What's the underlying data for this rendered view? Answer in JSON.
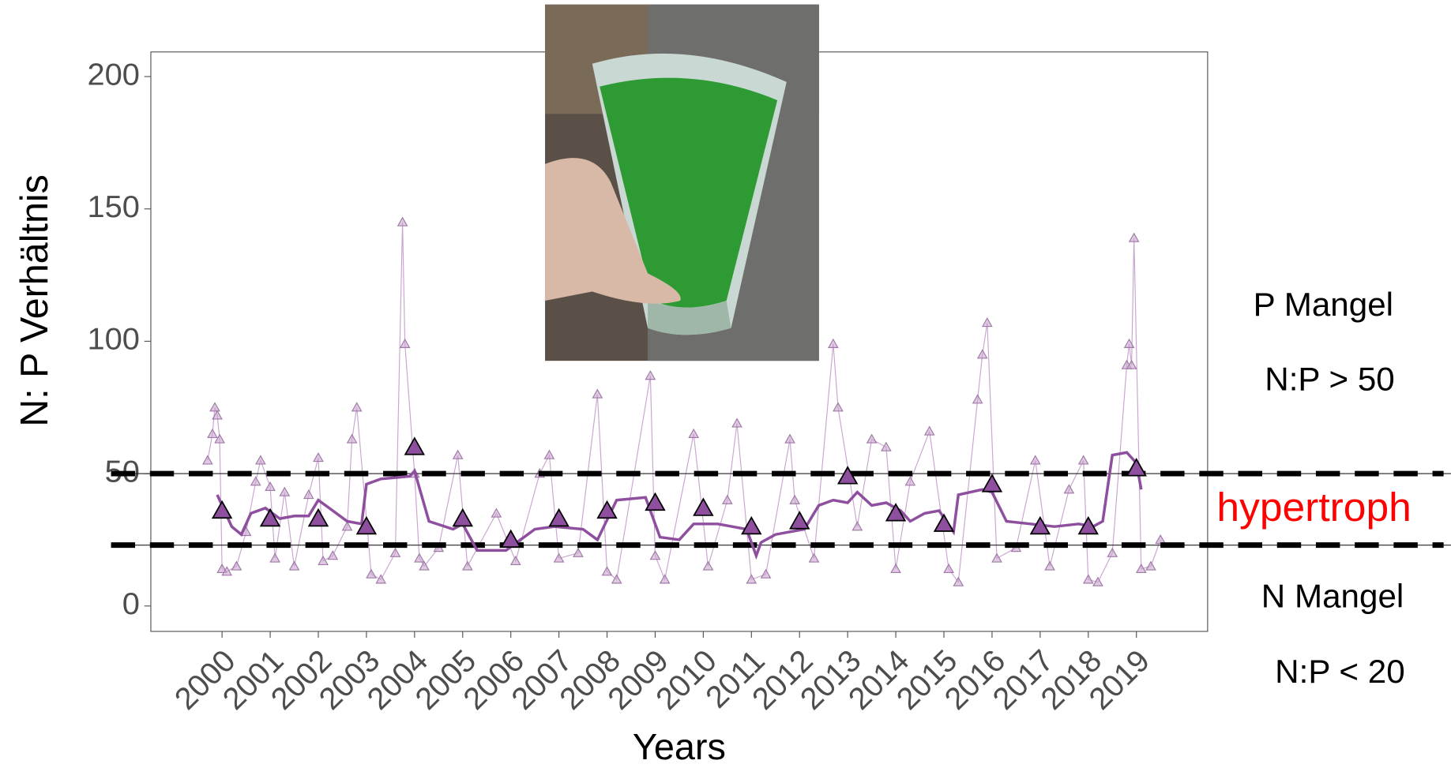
{
  "chart_data": {
    "type": "line",
    "y_label": "N: P Verhältnis",
    "x_label": "Years",
    "xlim": [
      1998.52,
      2020.48
    ],
    "ylim": [
      -9.6,
      209.3
    ],
    "xticks": [
      2000,
      2001,
      2002,
      2003,
      2004,
      2005,
      2006,
      2007,
      2008,
      2009,
      2010,
      2011,
      2012,
      2013,
      2014,
      2015,
      2016,
      2017,
      2018,
      2019
    ],
    "yticks": [
      0,
      50,
      100,
      150,
      200
    ],
    "thresholds": [
      50,
      23
    ],
    "annotations": [
      "P Mangel",
      "N:P > 50",
      "hypertroph",
      "N Mangel",
      "N:P < 20"
    ],
    "monthly": {
      "color": "#c9a6cf",
      "x": [
        1999.7,
        1999.8,
        1999.85,
        1999.9,
        1999.95,
        2000.0,
        2000.1,
        2000.3,
        2000.5,
        2000.7,
        2000.8,
        2001.0,
        2001.1,
        2001.3,
        2001.5,
        2001.8,
        2002.0,
        2002.1,
        2002.3,
        2002.6,
        2002.7,
        2002.8,
        2003.1,
        2003.3,
        2003.6,
        2003.75,
        2003.8,
        2004.0,
        2004.1,
        2004.2,
        2004.5,
        2004.9,
        2005.1,
        2005.7,
        2006.1,
        2006.6,
        2006.8,
        2007.0,
        2007.4,
        2007.8,
        2008.0,
        2008.2,
        2008.9,
        2009.0,
        2009.2,
        2009.8,
        2010.1,
        2010.5,
        2010.7,
        2011.0,
        2011.3,
        2011.8,
        2011.9,
        2012.3,
        2012.7,
        2012.8,
        2013.2,
        2013.5,
        2013.8,
        2014.0,
        2014.3,
        2014.7,
        2015.1,
        2015.3,
        2015.7,
        2015.8,
        2015.9,
        2016.1,
        2016.5,
        2016.9,
        2017.2,
        2017.6,
        2017.9,
        2018.0,
        2018.2,
        2018.5,
        2018.8,
        2018.85,
        2018.9,
        2018.95,
        2019.1,
        2019.3,
        2019.5
      ],
      "values": [
        55,
        65,
        75,
        72,
        63,
        14,
        13,
        15,
        28,
        47,
        55,
        45,
        18,
        43,
        15,
        42,
        56,
        17,
        19,
        30,
        63,
        75,
        12,
        10,
        20,
        145,
        99,
        50,
        18,
        15,
        22,
        57,
        15,
        35,
        17,
        50,
        57,
        18,
        20,
        80,
        13,
        10,
        87,
        19,
        10,
        65,
        15,
        40,
        69,
        10,
        12,
        63,
        40,
        18,
        99,
        75,
        30,
        63,
        60,
        14,
        47,
        66,
        14,
        9,
        78,
        95,
        107,
        18,
        22,
        55,
        15,
        44,
        55,
        10,
        9,
        20,
        91,
        99,
        91,
        139,
        14,
        15,
        25
      ]
    },
    "trend": {
      "color": "#8e4f9e",
      "x": [
        1999.9,
        2000.2,
        2000.4,
        2000.6,
        2000.9,
        2001.2,
        2001.5,
        2001.8,
        2002.0,
        2002.3,
        2002.6,
        2002.9,
        2003.0,
        2003.3,
        2003.9,
        2004.0,
        2004.3,
        2004.8,
        2005.0,
        2005.3,
        2005.9,
        2006.2,
        2006.5,
        2006.9,
        2007.5,
        2007.8,
        2008.2,
        2008.8,
        2009.1,
        2009.5,
        2009.8,
        2010.3,
        2010.9,
        2011.1,
        2011.2,
        2011.5,
        2012.1,
        2012.4,
        2012.7,
        2013.0,
        2013.2,
        2013.5,
        2013.8,
        2014.1,
        2014.3,
        2014.6,
        2014.9,
        2015.2,
        2015.3,
        2015.8,
        2016.0,
        2016.3,
        2016.8,
        2017.3,
        2017.8,
        2018.1,
        2018.3,
        2018.5,
        2018.8,
        2019.0,
        2019.1
      ],
      "values": [
        42,
        30,
        27,
        35,
        37,
        33,
        34,
        34,
        40,
        36,
        32,
        31,
        46,
        48,
        49,
        51,
        32,
        29,
        31,
        21,
        21,
        25,
        29,
        30,
        29,
        25,
        40,
        41,
        26,
        25,
        31,
        31,
        29,
        19,
        24,
        27,
        29,
        38,
        40,
        39,
        43,
        38,
        39,
        36,
        32,
        35,
        36,
        28,
        42,
        44,
        43,
        32,
        31,
        30,
        31,
        30,
        32,
        57,
        58,
        54,
        44
      ]
    },
    "annual": {
      "color": "#8e4f9e",
      "x": [
        2000,
        2001,
        2002,
        2003,
        2004,
        2005,
        2006,
        2007,
        2008,
        2009,
        2010,
        2011,
        2012,
        2013,
        2014,
        2015,
        2016,
        2017,
        2018,
        2019
      ],
      "values": [
        36,
        33,
        33,
        30,
        60,
        33,
        25,
        33,
        36,
        39,
        37,
        30,
        32,
        49,
        35,
        31,
        46,
        30,
        30,
        52
      ]
    }
  }
}
